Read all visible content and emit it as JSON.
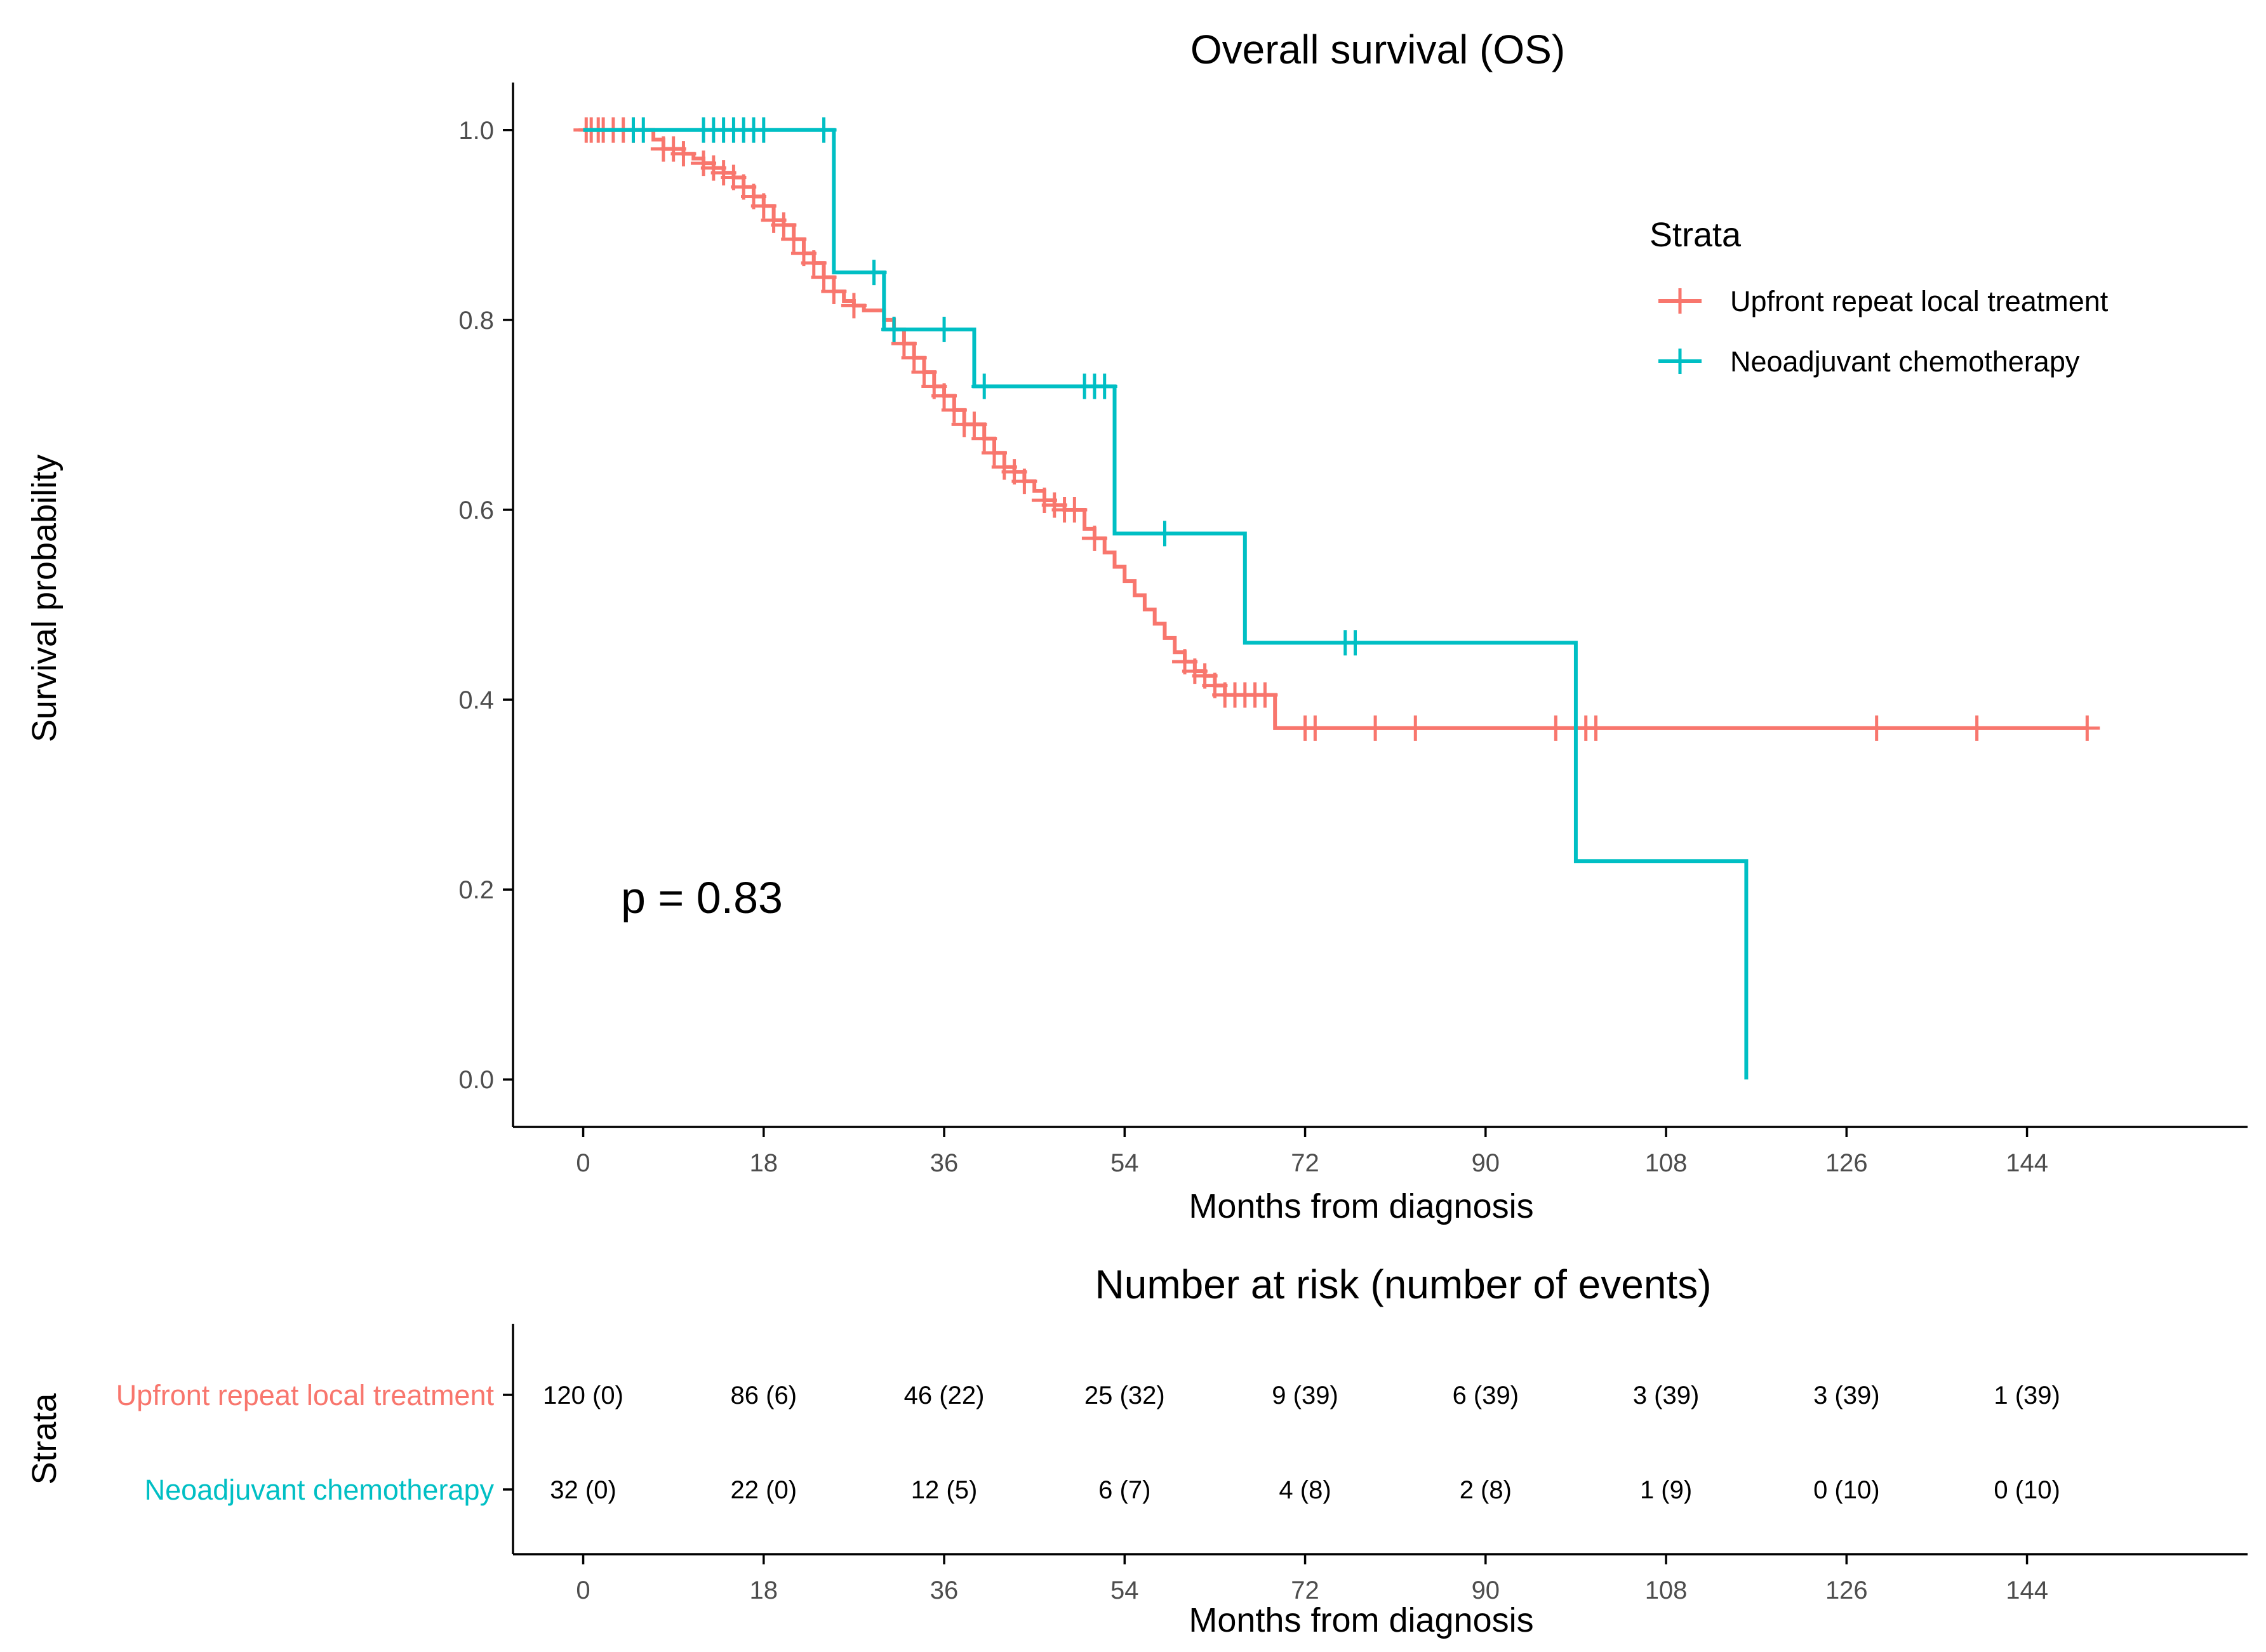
{
  "chart_data": [
    {
      "type": "line",
      "subtype": "kaplan-meier",
      "title": "Overall survival (OS)",
      "xlabel": "Months from diagnosis",
      "ylabel": "Survival probability",
      "xlim": [
        -7,
        166
      ],
      "ylim": [
        -0.05,
        1.05
      ],
      "xticks": [
        0,
        18,
        36,
        54,
        72,
        90,
        108,
        126,
        144
      ],
      "yticks": [
        0.0,
        0.2,
        0.4,
        0.6,
        0.8,
        1.0
      ],
      "ytick_labels": [
        "0.0",
        "0.2",
        "0.4",
        "0.6",
        "0.8",
        "1.0"
      ],
      "annotation": "p = 0.83",
      "legend": {
        "title": "Strata",
        "position": "top-right"
      },
      "series": [
        {
          "name": "Upfront repeat local treatment",
          "color": "#F8766D",
          "x": [
            0,
            7,
            8,
            10,
            11,
            12,
            13,
            14,
            15,
            16,
            17,
            18,
            19,
            20,
            21,
            22,
            23,
            24,
            25,
            26,
            27,
            28,
            30,
            31,
            32,
            33,
            34,
            35,
            36,
            37,
            38,
            40,
            41,
            42,
            43,
            44,
            45,
            46,
            47,
            48,
            50,
            51,
            52,
            53,
            54,
            55,
            56,
            57,
            58,
            59,
            60,
            61,
            62,
            63,
            64,
            69
          ],
          "y": [
            1.0,
            0.99,
            0.98,
            0.975,
            0.97,
            0.965,
            0.96,
            0.955,
            0.95,
            0.94,
            0.93,
            0.92,
            0.905,
            0.9,
            0.885,
            0.87,
            0.86,
            0.845,
            0.83,
            0.82,
            0.815,
            0.81,
            0.8,
            0.79,
            0.775,
            0.76,
            0.745,
            0.73,
            0.72,
            0.705,
            0.69,
            0.675,
            0.66,
            0.645,
            0.64,
            0.63,
            0.62,
            0.61,
            0.605,
            0.6,
            0.58,
            0.57,
            0.555,
            0.54,
            0.525,
            0.51,
            0.495,
            0.48,
            0.465,
            0.45,
            0.44,
            0.43,
            0.425,
            0.415,
            0.405,
            0.37
          ],
          "x_end": 150,
          "censor_x": [
            0.3,
            0.8,
            1.5,
            2,
            3,
            4,
            5,
            8,
            9,
            10,
            12,
            13,
            14,
            15,
            16,
            17,
            18,
            19,
            20,
            21,
            22,
            23,
            24,
            25,
            27,
            31,
            32,
            33,
            34,
            35,
            36,
            37,
            38,
            39,
            40,
            41,
            42,
            43,
            44,
            46,
            47,
            48,
            49,
            51,
            60,
            61,
            62,
            63,
            64,
            65,
            66,
            67,
            68,
            72,
            73,
            79,
            83,
            97,
            100,
            101,
            129,
            139,
            150
          ]
        },
        {
          "name": "Neoadjuvant chemotherapy",
          "color": "#00BFC4",
          "x": [
            0,
            25,
            30,
            39,
            53,
            66,
            99,
            116
          ],
          "y": [
            1.0,
            0.85,
            0.79,
            0.73,
            0.575,
            0.46,
            0.23,
            0.0
          ],
          "x_end": 116,
          "censor_x": [
            5,
            6,
            12,
            13,
            14,
            15,
            16,
            17,
            18,
            24,
            29,
            31,
            36,
            40,
            50,
            51,
            52,
            58,
            76,
            77
          ]
        }
      ]
    },
    {
      "type": "table",
      "title": "Number at risk (number of events)",
      "xlabel": "Months from diagnosis",
      "ylabel": "Strata",
      "xticks": [
        0,
        18,
        36,
        54,
        72,
        90,
        108,
        126,
        144
      ],
      "rows": [
        {
          "name": "Upfront repeat local treatment",
          "color": "#F8766D",
          "values": [
            "120 (0)",
            "86 (6)",
            "46 (22)",
            "25 (32)",
            "9 (39)",
            "6 (39)",
            "3 (39)",
            "3 (39)",
            "1 (39)"
          ]
        },
        {
          "name": "Neoadjuvant chemotherapy",
          "color": "#00BFC4",
          "values": [
            "32 (0)",
            "22 (0)",
            "12 (5)",
            "6 (7)",
            "4 (8)",
            "2 (8)",
            "1 (9)",
            "0 (10)",
            "0 (10)"
          ]
        }
      ]
    }
  ]
}
